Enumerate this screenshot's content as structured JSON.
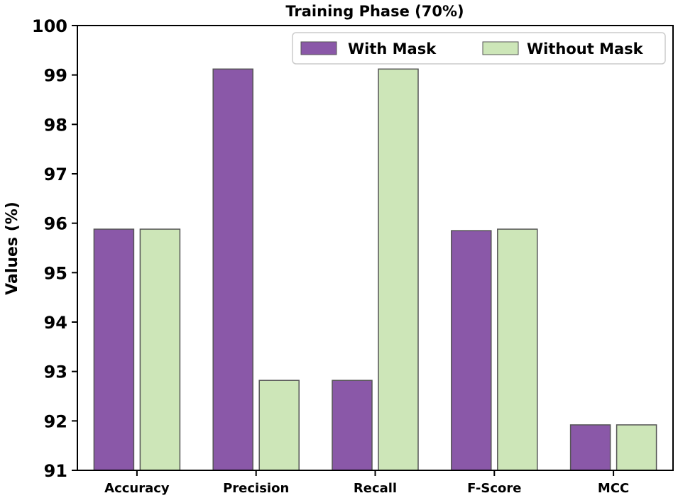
{
  "chart_data": {
    "type": "bar",
    "title": "Training Phase (70%)",
    "xlabel": "",
    "ylabel": "Values (%)",
    "categories": [
      "Accuracy",
      "Precision",
      "Recall",
      "F-Score",
      "MCC"
    ],
    "series": [
      {
        "name": "With Mask",
        "values": [
          95.88,
          99.12,
          92.82,
          95.85,
          91.92
        ],
        "color": "#8a58a8"
      },
      {
        "name": "Without Mask",
        "values": [
          95.88,
          92.82,
          99.12,
          95.88,
          91.92
        ],
        "color": "#cde6b8"
      }
    ],
    "ylim": [
      91,
      100
    ],
    "yticks": [
      "91",
      "92",
      "93",
      "94",
      "95",
      "96",
      "97",
      "98",
      "99",
      "100"
    ],
    "grid": false,
    "legend_position": "top-right",
    "bar_edge_color": "#555555"
  }
}
